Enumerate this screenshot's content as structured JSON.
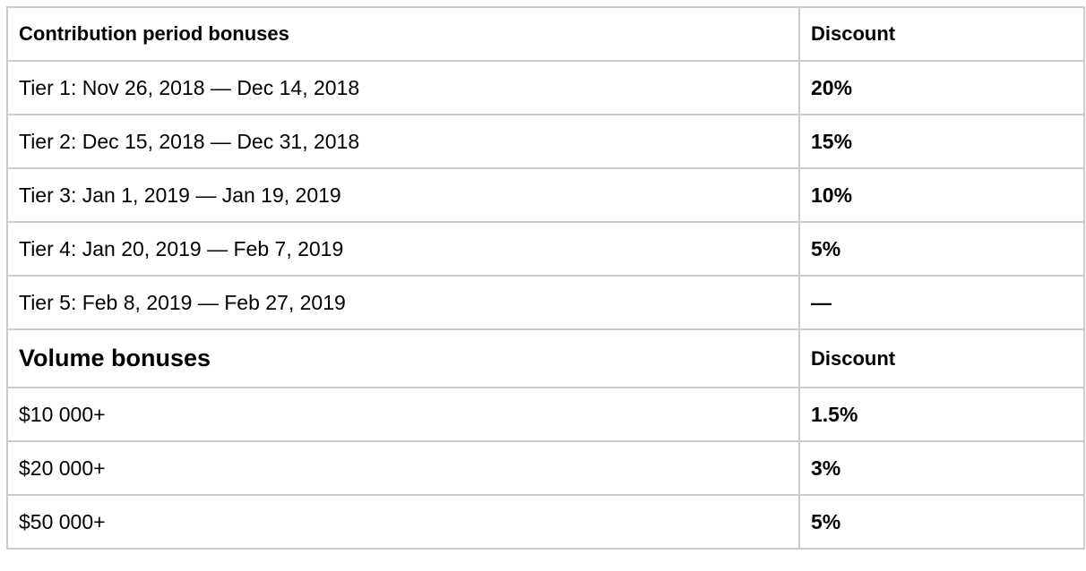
{
  "contribution": {
    "header": "Contribution period bonuses",
    "discount_header": "Discount",
    "rows": [
      {
        "period": "Tier 1: Nov 26, 2018 — Dec 14, 2018",
        "discount": "20%"
      },
      {
        "period": "Tier 2: Dec 15, 2018 — Dec 31, 2018",
        "discount": "15%"
      },
      {
        "period": "Tier 3: Jan 1, 2019 — Jan 19, 2019",
        "discount": "10%"
      },
      {
        "period": "Tier 4: Jan 20, 2019 — Feb 7, 2019",
        "discount": "5%"
      },
      {
        "period": "Tier 5: Feb 8, 2019 — Feb 27, 2019",
        "discount": "—"
      }
    ]
  },
  "volume": {
    "header": "Volume bonuses",
    "discount_header": "Discount",
    "rows": [
      {
        "amount": "$10 000+",
        "discount": "1.5%"
      },
      {
        "amount": "$20 000+",
        "discount": "3%"
      },
      {
        "amount": "$50 000+",
        "discount": "5%"
      }
    ]
  }
}
